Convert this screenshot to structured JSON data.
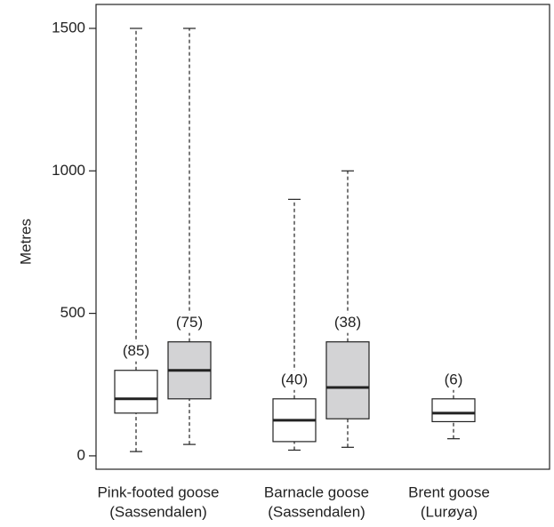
{
  "chart_data": {
    "type": "box",
    "y_label": "Metres",
    "categories": [
      [
        "Pink-footed goose",
        "(Sassendalen)"
      ],
      [
        "Barnacle goose",
        "(Sassendalen)"
      ],
      [
        "Brent goose",
        "(Lurøya)"
      ]
    ],
    "series": [
      {
        "color": "#ffffff",
        "min": [
          15,
          20,
          60
        ],
        "q1": [
          150,
          50,
          120
        ],
        "median": [
          200,
          125,
          150
        ],
        "q3": [
          300,
          200,
          200
        ],
        "max": [
          1500,
          900,
          250
        ],
        "count_labels": [
          "(85)",
          "(40)",
          "(6)"
        ]
      },
      {
        "color": "#d3d3d5",
        "min": [
          40,
          30,
          null
        ],
        "q1": [
          200,
          130,
          null
        ],
        "median": [
          300,
          240,
          null
        ],
        "q3": [
          400,
          400,
          null
        ],
        "max": [
          1500,
          1000,
          null
        ],
        "count_labels": [
          "(75)",
          "(38)",
          null
        ]
      }
    ],
    "ylim": [
      -47,
      1584
    ],
    "yticks": [
      0,
      500,
      1000,
      1500
    ]
  }
}
